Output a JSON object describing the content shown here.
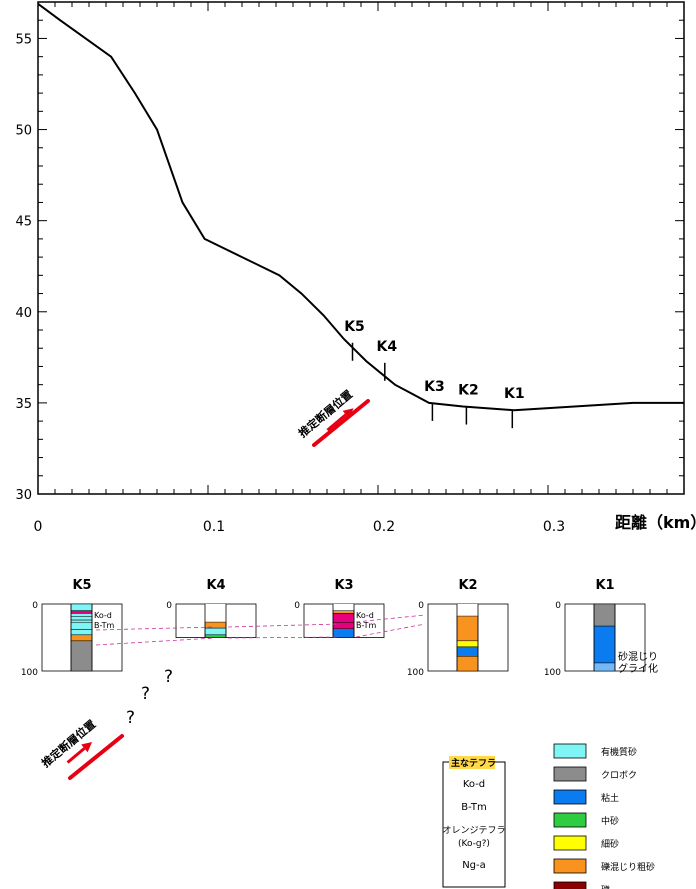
{
  "chart_data": {
    "type": "line",
    "title": "",
    "xlabel": "距離（km）",
    "ylabel": "",
    "xlim": [
      0,
      0.38
    ],
    "ylim": [
      30,
      57
    ],
    "x_tick_labels": [
      "0",
      "0.1",
      "0.2",
      "0.3"
    ],
    "x_tick_values": [
      0,
      0.1,
      0.2,
      0.3
    ],
    "y_tick_labels": [
      "30",
      "35",
      "40",
      "45",
      "50",
      "55"
    ],
    "y_tick_values": [
      30,
      35,
      40,
      45,
      50,
      55
    ],
    "series": [
      {
        "values_x": [
          0,
          0.013,
          0.043,
          0.057,
          0.07,
          0.085,
          0.098,
          0.12,
          0.142,
          0.155,
          0.168,
          0.18,
          0.193,
          0.21,
          0.22,
          0.23,
          0.25,
          0.28,
          0.35,
          0.38
        ],
        "values_y": [
          56.9,
          56.0,
          54.0,
          52.0,
          50.0,
          46.0,
          44.0,
          43.0,
          42.0,
          41.0,
          39.8,
          38.5,
          37.3,
          36.0,
          35.5,
          35.0,
          34.8,
          34.6,
          35.0,
          35.0
        ]
      }
    ],
    "boreholes": [
      {
        "name": "K5",
        "x": 0.185,
        "ground": 38.3
      },
      {
        "name": "K4",
        "x": 0.204,
        "ground": 37.2
      },
      {
        "name": "K3",
        "x": 0.232,
        "ground": 35.0
      },
      {
        "name": "K2",
        "x": 0.252,
        "ground": 34.8
      },
      {
        "name": "K1",
        "x": 0.279,
        "ground": 34.6
      }
    ],
    "fault_label": "推定断層位置"
  },
  "logs": {
    "scale_top": "0",
    "scale_bottom": "100",
    "columns": [
      {
        "name": "K5",
        "show_scale": true,
        "depth": 100,
        "layers": [
          {
            "from": 0,
            "to": 10,
            "color": "#7ff5f5"
          },
          {
            "from": 10,
            "to": 14,
            "color": "#e6007e"
          },
          {
            "from": 14,
            "to": 19,
            "color": "#7ff5f5"
          },
          {
            "from": 19,
            "to": 24,
            "color": "#7ff5f5"
          },
          {
            "from": 24,
            "to": 28,
            "color": "#7ff5f5"
          },
          {
            "from": 28,
            "to": 38,
            "color": "#7ff5f5"
          },
          {
            "from": 38,
            "to": 46,
            "color": "#7ff5f5"
          },
          {
            "from": 46,
            "to": 55,
            "color": "#f7931e"
          },
          {
            "from": 55,
            "to": 100,
            "color": "#8c8c8c"
          }
        ],
        "notes": [
          "Ko-d",
          "B-Tm"
        ]
      },
      {
        "name": "K4",
        "show_scale": true,
        "depth": 50,
        "layers": [
          {
            "from": 0,
            "to": 27,
            "color": "#ffffff"
          },
          {
            "from": 27,
            "to": 36,
            "color": "#f7931e"
          },
          {
            "from": 36,
            "to": 46,
            "color": "#7ff5f5"
          },
          {
            "from": 46,
            "to": 50,
            "color": "#2ecc40"
          }
        ],
        "notes": []
      },
      {
        "name": "K3",
        "show_scale": true,
        "depth": 50,
        "layers": [
          {
            "from": 0,
            "to": 10,
            "color": "#ffffff"
          },
          {
            "from": 10,
            "to": 14,
            "color": "#f7931e"
          },
          {
            "from": 14,
            "to": 28,
            "color": "#e6007e"
          },
          {
            "from": 28,
            "to": 37,
            "color": "#e6007e"
          },
          {
            "from": 37,
            "to": 50,
            "color": "#0a7cf0"
          }
        ],
        "notes": [
          "Ko-d",
          "B-Tm"
        ]
      },
      {
        "name": "K2",
        "show_scale": true,
        "depth": 100,
        "layers": [
          {
            "from": 0,
            "to": 18,
            "color": "#ffffff"
          },
          {
            "from": 18,
            "to": 55,
            "color": "#f7931e"
          },
          {
            "from": 55,
            "to": 64,
            "color": "#ffff00"
          },
          {
            "from": 64,
            "to": 78,
            "color": "#0a7cf0"
          },
          {
            "from": 78,
            "to": 100,
            "color": "#f7931e"
          }
        ],
        "notes": []
      },
      {
        "name": "K1",
        "show_scale": true,
        "depth": 100,
        "layers": [
          {
            "from": 0,
            "to": 33,
            "color": "#8c8c8c"
          },
          {
            "from": 33,
            "to": 88,
            "color": "#0a7cf0"
          },
          {
            "from": 88,
            "to": 100,
            "color": "#74b9f5"
          }
        ],
        "notes": [
          "砂混じり",
          "グライ化"
        ]
      }
    ],
    "question_marks": [
      "?",
      "?",
      "?"
    ]
  },
  "tephra_box": {
    "title": "主なテフラ",
    "items": [
      "Ko-d",
      "B-Tm",
      "オレンジテフラ",
      "(Ko-g?)",
      "Ng-a"
    ]
  },
  "legend": {
    "items": [
      {
        "label": "有機質砂",
        "color": "#7ff5f5"
      },
      {
        "label": "クロボク",
        "color": "#8c8c8c"
      },
      {
        "label": "粘土",
        "color": "#0a7cf0"
      },
      {
        "label": "中砂",
        "color": "#2ecc40"
      },
      {
        "label": "細砂",
        "color": "#ffff00"
      },
      {
        "label": "礫混じり粗砂",
        "color": "#f7931e"
      },
      {
        "label": "礫",
        "color": "#8b0000"
      }
    ]
  }
}
